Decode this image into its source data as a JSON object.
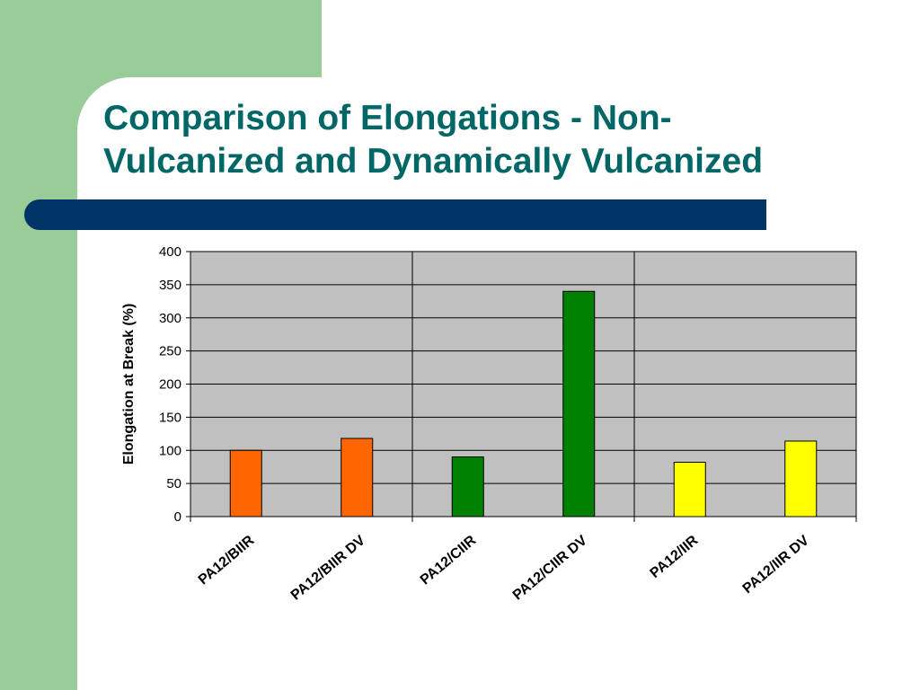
{
  "slide": {
    "title_line1": "Comparison of Elongations - Non-",
    "title_line2": "Vulcanized and Dynamically Vulcanized"
  },
  "colors": {
    "left_band": "#99cc99",
    "title_text": "#006666",
    "title_bar": "#003366",
    "plot_background": "#c0c0c0",
    "biir_bars": "#ff6600",
    "ciir_bars": "#008000",
    "iir_bars": "#ffff00"
  },
  "chart_data": {
    "type": "bar",
    "title": "",
    "xlabel": "",
    "ylabel": "Elongation at Break (%)",
    "ylim": [
      0,
      400
    ],
    "yticks": [
      0,
      50,
      100,
      150,
      200,
      250,
      300,
      350,
      400
    ],
    "grid": "horizontal",
    "legend": "none",
    "categories": [
      "PA12/BIIR",
      "PA12/BIIR DV",
      "PA12/CIIR",
      "PA12/CIIR DV",
      "PA12/IIR",
      "PA12/IIR DV"
    ],
    "values": [
      100,
      118,
      90,
      340,
      82,
      114
    ],
    "bar_colors": [
      "#ff6600",
      "#ff6600",
      "#008000",
      "#008000",
      "#ffff00",
      "#ffff00"
    ]
  }
}
